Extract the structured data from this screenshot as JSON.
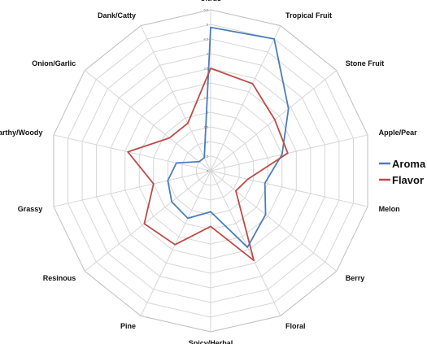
{
  "chart_data": {
    "type": "radar",
    "categories": [
      "Citrus",
      "Tropical Fruit",
      "Stone Fruit",
      "Apple/Pear",
      "Melon",
      "Berry",
      "Floral",
      "Spicy/Herbal",
      "Pine",
      "Resinous",
      "Grassy",
      "Earthy/Woody",
      "Onion/Garlic",
      "Dank/Catty"
    ],
    "series": [
      {
        "name": "Aroma",
        "color": "#4a7ebb",
        "values": [
          4.9,
          5.0,
          3.4,
          2.5,
          1.9,
          2.4,
          2.9,
          1.4,
          1.8,
          1.7,
          1.5,
          1.2,
          0.5,
          0.5
        ]
      },
      {
        "name": "Flavor",
        "color": "#be4b48",
        "values": [
          3.5,
          3.3,
          2.8,
          2.7,
          1.3,
          1.1,
          3.4,
          1.9,
          2.8,
          2.9,
          2.0,
          2.9,
          1.8,
          1.8
        ]
      }
    ],
    "rmax": 5.5,
    "ticks": [
      "0",
      "0.5",
      "1",
      "1.5",
      "2",
      "2.5",
      "3",
      "3.5",
      "4",
      "4.5",
      "5",
      "5.5"
    ],
    "grid": true,
    "legend_position": "right"
  }
}
